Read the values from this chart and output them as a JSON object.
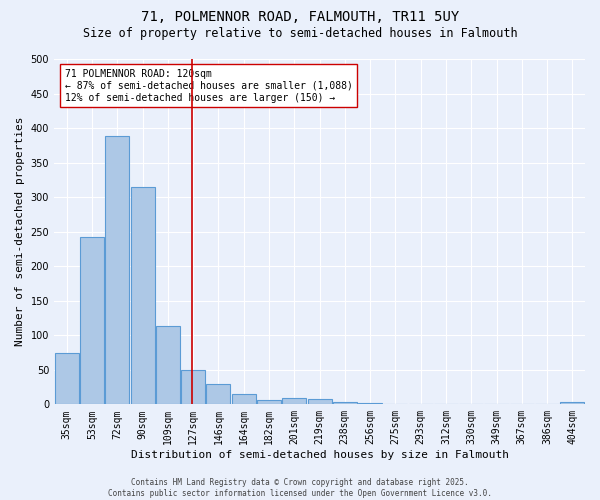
{
  "title_line1": "71, POLMENNOR ROAD, FALMOUTH, TR11 5UY",
  "title_line2": "Size of property relative to semi-detached houses in Falmouth",
  "xlabel": "Distribution of semi-detached houses by size in Falmouth",
  "ylabel": "Number of semi-detached properties",
  "categories": [
    "35sqm",
    "53sqm",
    "72sqm",
    "90sqm",
    "109sqm",
    "127sqm",
    "146sqm",
    "164sqm",
    "182sqm",
    "201sqm",
    "219sqm",
    "238sqm",
    "256sqm",
    "275sqm",
    "293sqm",
    "312sqm",
    "330sqm",
    "349sqm",
    "367sqm",
    "386sqm",
    "404sqm"
  ],
  "values": [
    74,
    243,
    388,
    315,
    114,
    50,
    30,
    15,
    6,
    9,
    7,
    4,
    2,
    1,
    0,
    1,
    0,
    0,
    0,
    1,
    4
  ],
  "bar_color": "#adc8e6",
  "bar_edge_color": "#5b9bd5",
  "vline_x": 5,
  "vline_color": "#cc0000",
  "annotation_line1": "71 POLMENNOR ROAD: 120sqm",
  "annotation_line2": "← 87% of semi-detached houses are smaller (1,088)",
  "annotation_line3": "12% of semi-detached houses are larger (150) →",
  "annotation_box_color": "#ffffff",
  "annotation_box_edge": "#cc0000",
  "footer_text": "Contains HM Land Registry data © Crown copyright and database right 2025.\nContains public sector information licensed under the Open Government Licence v3.0.",
  "ylim": [
    0,
    500
  ],
  "yticks": [
    0,
    50,
    100,
    150,
    200,
    250,
    300,
    350,
    400,
    450,
    500
  ],
  "bg_color": "#eaf0fb",
  "plot_bg_color": "#eaf0fb",
  "grid_color": "#ffffff",
  "title_fontsize": 10,
  "subtitle_fontsize": 8.5,
  "tick_fontsize": 7,
  "label_fontsize": 8,
  "annotation_fontsize": 7,
  "footer_fontsize": 5.5
}
